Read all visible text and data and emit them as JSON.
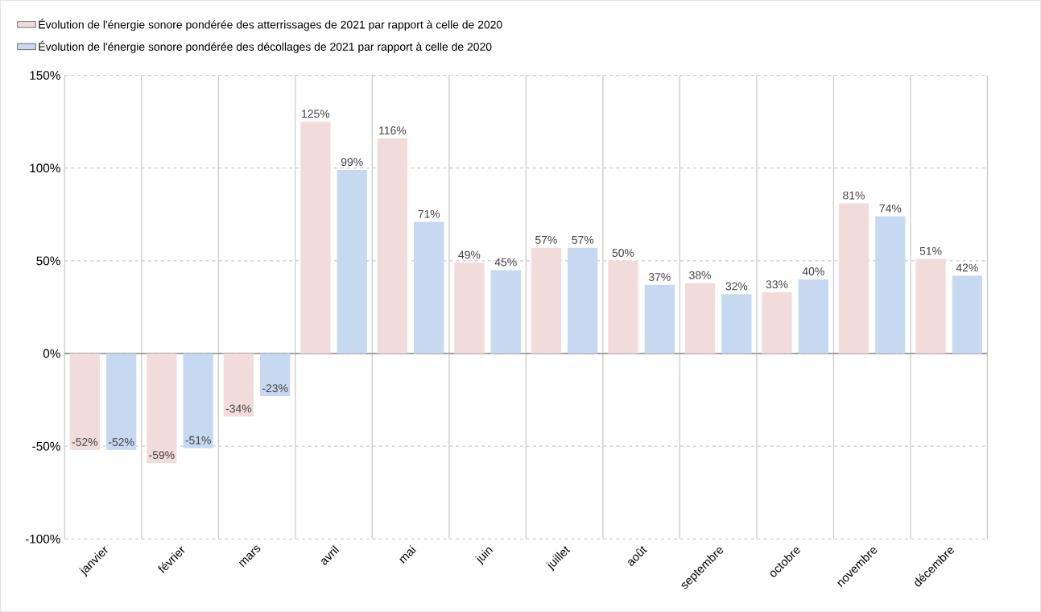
{
  "chart_data": {
    "type": "bar",
    "categories": [
      "janvier",
      "février",
      "mars",
      "avril",
      "mai",
      "juin",
      "juillet",
      "août",
      "septembre",
      "octobre",
      "novembre",
      "décembre"
    ],
    "series": [
      {
        "name": "Évolution de l'énergie sonore pondérée des atterrissages de 2021 par rapport à celle de 2020",
        "color": "#f2dcdb",
        "values": [
          -52,
          -59,
          -34,
          125,
          116,
          49,
          57,
          50,
          38,
          33,
          81,
          51
        ],
        "value_labels": [
          "-52%",
          "-59%",
          "-34%",
          "125%",
          "116%",
          "49%",
          "57%",
          "50%",
          "38%",
          "33%",
          "81%",
          "51%"
        ]
      },
      {
        "name": "Évolution de l'énergie sonore pondérée des décollages de 2021 par rapport à celle de 2020",
        "color": "#c6d9f1",
        "values": [
          -52,
          -51,
          -23,
          99,
          71,
          45,
          57,
          37,
          32,
          40,
          74,
          42
        ],
        "value_labels": [
          "-52%",
          "-51%",
          "-23%",
          "99%",
          "71%",
          "45%",
          "57%",
          "37%",
          "32%",
          "40%",
          "74%",
          "42%"
        ]
      }
    ],
    "ylim": [
      -100,
      150
    ],
    "yticks": [
      {
        "value": -100,
        "label": "-100%"
      },
      {
        "value": -50,
        "label": "-50%"
      },
      {
        "value": 0,
        "label": "0%"
      },
      {
        "value": 50,
        "label": "50%"
      },
      {
        "value": 100,
        "label": "100%"
      },
      {
        "value": 150,
        "label": "150%"
      }
    ],
    "grid": true,
    "legend": "top left"
  }
}
